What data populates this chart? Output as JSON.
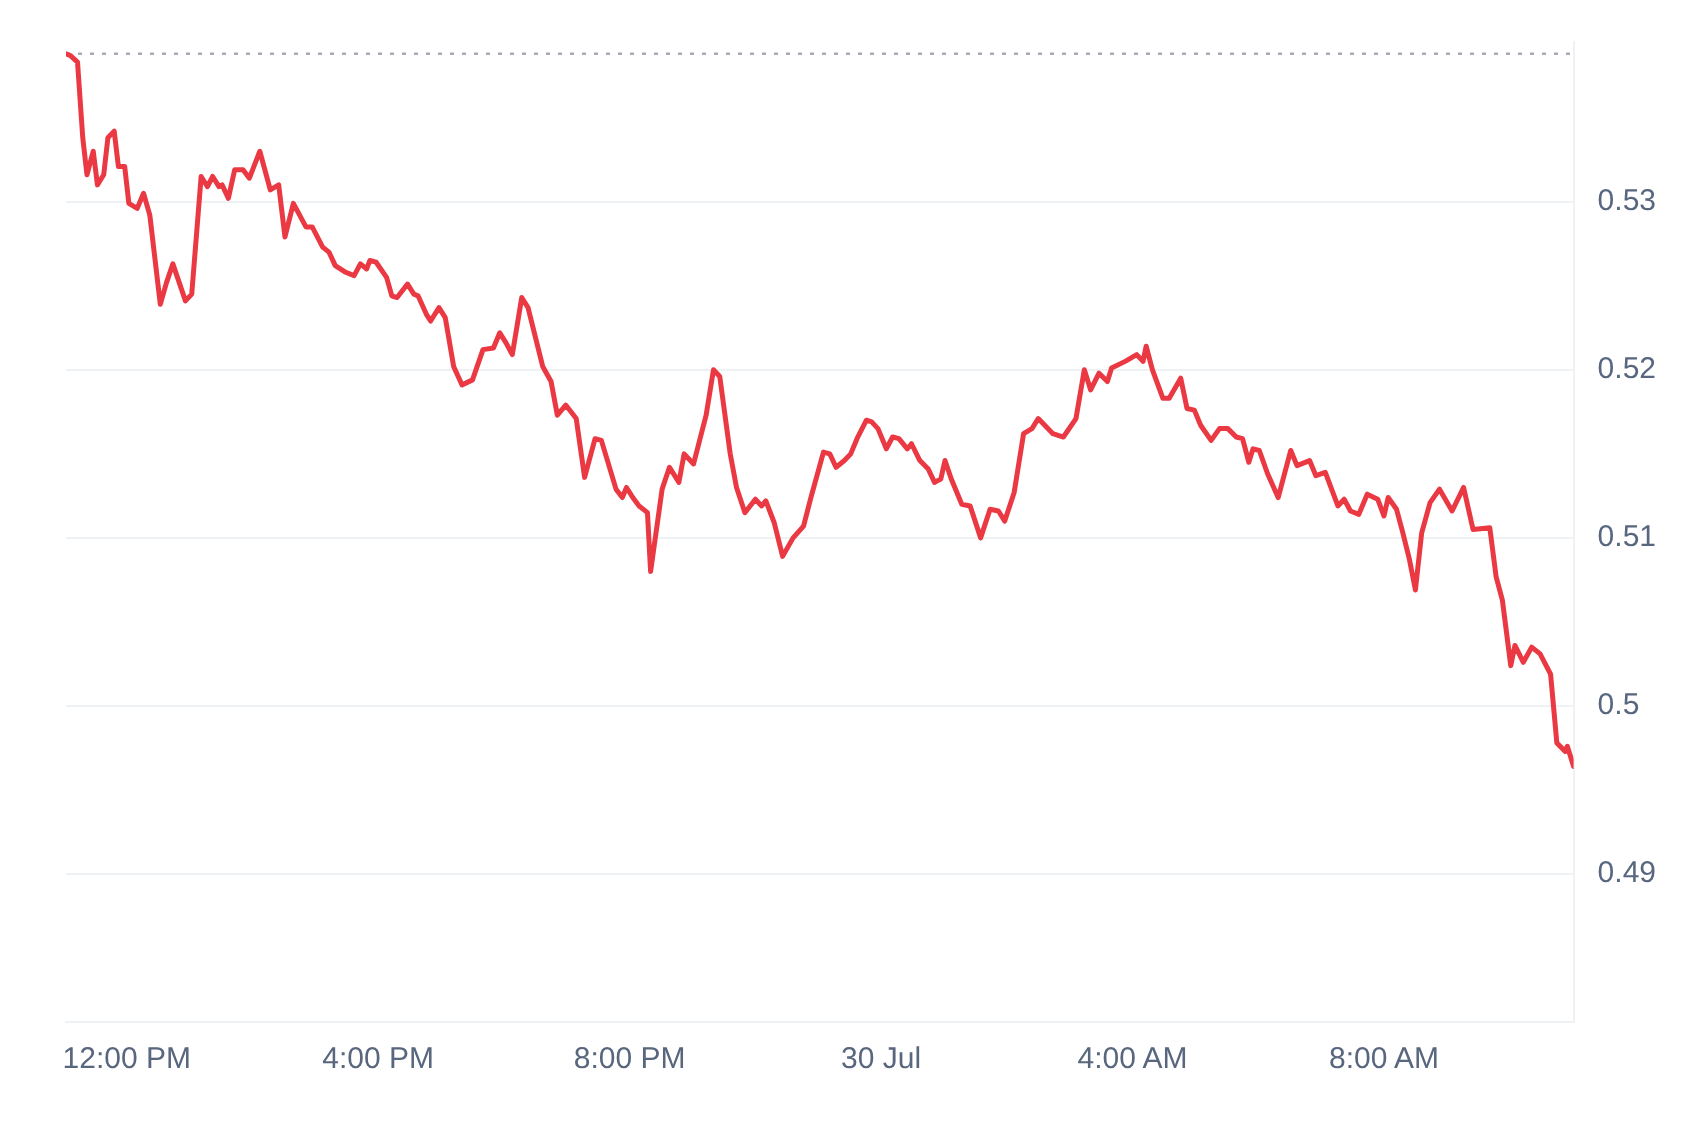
{
  "chart_data": {
    "type": "line",
    "xlim": [
      "--07-29T11:02",
      "--07-30T11:01"
    ],
    "ylim": [
      0.4812,
      0.5395
    ],
    "xticks": [
      {
        "value": "--07-29T12:00",
        "label": "12:00 PM"
      },
      {
        "value": "--07-29T16:00",
        "label": "4:00 PM"
      },
      {
        "value": "--07-29T20:00",
        "label": "8:00 PM"
      },
      {
        "value": "--07-30T00:00",
        "label": "30 Jul"
      },
      {
        "value": "--07-30T04:00",
        "label": "4:00 AM"
      },
      {
        "value": "--07-30T08:00",
        "label": "8:00 AM"
      }
    ],
    "yticks": [
      0.49,
      0.5,
      0.51,
      0.52,
      0.53
    ],
    "grid": "y",
    "legend": false,
    "marker": "none",
    "line_style": "solid",
    "ref_lines": [
      {
        "axis": "y",
        "value": 0.5388,
        "label": null,
        "color": "#a6abb5",
        "line_style": "dotted"
      }
    ],
    "series": [
      {
        "color": "#ea3943",
        "x": [
          "--07-29T11:02",
          "--07-29T11:06",
          "--07-29T11:13",
          "--07-29T11:18",
          "--07-29T11:22",
          "--07-29T11:28",
          "--07-29T11:32",
          "--07-29T11:38",
          "--07-29T11:42",
          "--07-29T11:48",
          "--07-29T11:52",
          "--07-29T11:58",
          "--07-29T12:02",
          "--07-29T12:10",
          "--07-29T12:16",
          "--07-29T12:22",
          "--07-29T12:32",
          "--07-29T12:38",
          "--07-29T12:44",
          "--07-29T12:56",
          "--07-29T13:02",
          "--07-29T13:11",
          "--07-29T13:17",
          "--07-29T13:22",
          "--07-29T13:28",
          "--07-29T13:31",
          "--07-29T13:37",
          "--07-29T13:43",
          "--07-29T13:51",
          "--07-29T13:57",
          "--07-29T14:07",
          "--07-29T14:17",
          "--07-29T14:25",
          "--07-29T14:31",
          "--07-29T14:39",
          "--07-29T14:51",
          "--07-29T14:57",
          "--07-29T15:07",
          "--07-29T15:13",
          "--07-29T15:19",
          "--07-29T15:29",
          "--07-29T15:37",
          "--07-29T15:43",
          "--07-29T15:49",
          "--07-29T15:52",
          "--07-29T15:58",
          "--07-29T16:08",
          "--07-29T16:13",
          "--07-29T16:18",
          "--07-29T16:28",
          "--07-29T16:34",
          "--07-29T16:38",
          "--07-29T16:46",
          "--07-29T16:50",
          "--07-29T16:58",
          "--07-29T17:04",
          "--07-29T17:12",
          "--07-29T17:20",
          "--07-29T17:30",
          "--07-29T17:40",
          "--07-29T17:50",
          "--07-29T17:56",
          "--07-29T18:02",
          "--07-29T18:08",
          "--07-29T18:17",
          "--07-29T18:23",
          "--07-29T18:37",
          "--07-29T18:45",
          "--07-29T18:51",
          "--07-29T18:59",
          "--07-29T19:09",
          "--07-29T19:17",
          "--07-29T19:27",
          "--07-29T19:33",
          "--07-29T19:47",
          "--07-29T19:53",
          "--07-29T19:57",
          "--07-29T20:03",
          "--07-29T20:09",
          "--07-29T20:17",
          "--07-29T20:20",
          "--07-29T20:31",
          "--07-29T20:38",
          "--07-29T20:47",
          "--07-29T20:52",
          "--07-29T21:01",
          "--07-29T21:13",
          "--07-29T21:20",
          "--07-29T21:26",
          "--07-29T21:36",
          "--07-29T21:42",
          "--07-29T21:50",
          "--07-29T22:00",
          "--07-29T22:06",
          "--07-29T22:10",
          "--07-29T22:18",
          "--07-29T22:26",
          "--07-29T22:36",
          "--07-29T22:46",
          "--07-29T22:53",
          "--07-29T23:05",
          "--07-29T23:11",
          "--07-29T23:17",
          "--07-29T23:25",
          "--07-29T23:31",
          "--07-29T23:37",
          "--07-29T23:46",
          "--07-29T23:51",
          "--07-29T23:57",
          "--07-30T00:05",
          "--07-30T00:11",
          "--07-30T00:17",
          "--07-30T00:25",
          "--07-30T00:29",
          "--07-30T00:37",
          "--07-30T00:45",
          "--07-30T00:51",
          "--07-30T00:57",
          "--07-30T01:01",
          "--07-30T01:07",
          "--07-30T01:17",
          "--07-30T01:25",
          "--07-30T01:35",
          "--07-30T01:44",
          "--07-30T01:52",
          "--07-30T01:58",
          "--07-30T02:07",
          "--07-30T02:16",
          "--07-30T02:24",
          "--07-30T02:30",
          "--07-30T02:44",
          "--07-30T02:54",
          "--07-30T03:06",
          "--07-30T03:14",
          "--07-30T03:20",
          "--07-30T03:28",
          "--07-30T03:36",
          "--07-30T03:40",
          "--07-30T03:53",
          "--07-30T04:04",
          "--07-30T04:10",
          "--07-30T04:13",
          "--07-30T04:19",
          "--07-30T04:29",
          "--07-30T04:35",
          "--07-30T04:46",
          "--07-30T04:52",
          "--07-30T04:59",
          "--07-30T05:05",
          "--07-30T05:15",
          "--07-30T05:23",
          "--07-30T05:31",
          "--07-30T05:39",
          "--07-30T05:45",
          "--07-30T05:51",
          "--07-30T05:55",
          "--07-30T06:01",
          "--07-30T06:09",
          "--07-30T06:19",
          "--07-30T06:31",
          "--07-30T06:37",
          "--07-30T06:49",
          "--07-30T06:55",
          "--07-30T07:04",
          "--07-30T07:16",
          "--07-30T07:22",
          "--07-30T07:28",
          "--07-30T07:36",
          "--07-30T07:44",
          "--07-30T07:54",
          "--07-30T08:00",
          "--07-30T08:04",
          "--07-30T08:12",
          "--07-30T08:18",
          "--07-30T08:24",
          "--07-30T08:30",
          "--07-30T08:36",
          "--07-30T08:44",
          "--07-30T08:53",
          "--07-30T09:05",
          "--07-30T09:16",
          "--07-30T09:25",
          "--07-30T09:41",
          "--07-30T09:47",
          "--07-30T09:53",
          "--07-30T10:01",
          "--07-30T10:05",
          "--07-30T10:13",
          "--07-30T10:21",
          "--07-30T10:29",
          "--07-30T10:39",
          "--07-30T10:45",
          "--07-30T10:53",
          "--07-30T10:55",
          "--07-30T11:01"
        ],
        "values": [
          0.5388,
          0.5387,
          0.5383,
          0.5338,
          0.5316,
          0.533,
          0.531,
          0.5316,
          0.5338,
          0.5342,
          0.5321,
          0.5321,
          0.5299,
          0.5296,
          0.5305,
          0.5292,
          0.5239,
          0.5252,
          0.5263,
          0.5241,
          0.5245,
          0.5315,
          0.5309,
          0.5315,
          0.5309,
          0.531,
          0.5302,
          0.5319,
          0.5319,
          0.5314,
          0.533,
          0.5307,
          0.531,
          0.5279,
          0.5299,
          0.5285,
          0.5285,
          0.5273,
          0.527,
          0.5262,
          0.5258,
          0.5256,
          0.5263,
          0.526,
          0.5265,
          0.5264,
          0.5255,
          0.5244,
          0.5243,
          0.5251,
          0.5245,
          0.5244,
          0.5233,
          0.5229,
          0.5237,
          0.5231,
          0.5202,
          0.5191,
          0.5194,
          0.5212,
          0.5213,
          0.5222,
          0.5216,
          0.5209,
          0.5243,
          0.5237,
          0.5202,
          0.5193,
          0.5173,
          0.5179,
          0.5171,
          0.5136,
          0.5159,
          0.5158,
          0.5129,
          0.5124,
          0.513,
          0.5124,
          0.5119,
          0.5115,
          0.508,
          0.5129,
          0.5142,
          0.5133,
          0.515,
          0.5144,
          0.5173,
          0.52,
          0.5196,
          0.515,
          0.513,
          0.5115,
          0.5123,
          0.5119,
          0.5122,
          0.5109,
          0.5089,
          0.51,
          0.5107,
          0.5124,
          0.5151,
          0.515,
          0.5142,
          0.5146,
          0.515,
          0.5159,
          0.517,
          0.5169,
          0.5165,
          0.5153,
          0.516,
          0.5159,
          0.5153,
          0.5156,
          0.5146,
          0.5141,
          0.5133,
          0.5135,
          0.5146,
          0.5135,
          0.512,
          0.5119,
          0.51,
          0.5117,
          0.5116,
          0.511,
          0.5127,
          0.5162,
          0.5165,
          0.5171,
          0.5162,
          0.516,
          0.5171,
          0.52,
          0.5188,
          0.5198,
          0.5193,
          0.5201,
          0.5205,
          0.5209,
          0.5205,
          0.5214,
          0.52,
          0.5183,
          0.5183,
          0.5195,
          0.5177,
          0.5176,
          0.5167,
          0.5158,
          0.5165,
          0.5165,
          0.516,
          0.5159,
          0.5145,
          0.5153,
          0.5152,
          0.5138,
          0.5124,
          0.5152,
          0.5143,
          0.5146,
          0.5137,
          0.5139,
          0.5119,
          0.5123,
          0.5116,
          0.5114,
          0.5126,
          0.5123,
          0.5113,
          0.5124,
          0.5117,
          0.5103,
          0.5088,
          0.5069,
          0.5103,
          0.5121,
          0.5129,
          0.5116,
          0.513,
          0.5105,
          0.5106,
          0.5077,
          0.5063,
          0.5024,
          0.5036,
          0.5026,
          0.5035,
          0.5031,
          0.5019,
          0.4978,
          0.4973,
          0.4976,
          0.4964
        ]
      }
    ]
  }
}
